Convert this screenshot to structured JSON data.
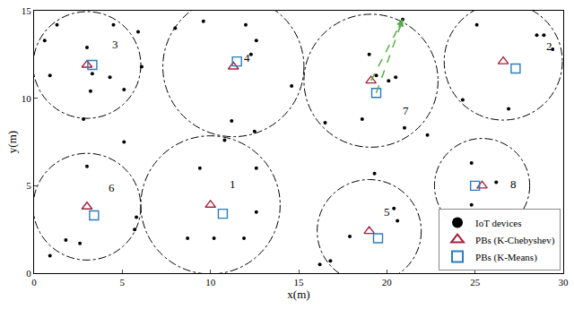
{
  "chart_data": {
    "type": "scatter",
    "xlabel": "x(m)",
    "ylabel": "y(m)",
    "xlim": [
      0,
      30
    ],
    "ylim": [
      0,
      15
    ],
    "xticks": [
      0,
      5,
      10,
      15,
      20,
      25,
      30
    ],
    "yticks": [
      0,
      5,
      10,
      15
    ],
    "grid": false,
    "legend": "lower right",
    "series": [
      {
        "name": "IoT devices",
        "color": "#000000",
        "marker": "circle",
        "x": [
          0.6,
          1.3,
          0.9,
          3.0,
          4.5,
          3.3,
          4.3,
          5.9,
          5.1,
          3.2,
          2.8,
          6.1,
          8.0,
          9.6,
          12.0,
          12.6,
          12.3,
          14.6,
          11.2,
          12.5,
          20.9,
          19.0,
          19.4,
          20.1,
          20.5,
          16.5,
          18.6,
          21.0,
          22.3,
          25.1,
          28.5,
          28.9,
          29.4,
          24.3,
          26.9,
          3.0,
          5.1,
          0.9,
          1.8,
          2.6,
          5.8,
          5.7,
          9.4,
          10.8,
          12.6,
          12.6,
          8.7,
          10.2,
          11.9,
          19.3,
          20.4,
          20.6,
          17.9,
          16.2,
          16.8,
          24.8,
          26.2,
          24.8
        ],
        "y": [
          13.3,
          14.2,
          11.3,
          12.9,
          14.2,
          11.4,
          11.2,
          13.8,
          10.5,
          10.4,
          8.8,
          11.8,
          14.0,
          14.4,
          14.2,
          13.3,
          12.5,
          10.7,
          8.7,
          8.1,
          14.5,
          12.5,
          11.3,
          11.0,
          11.2,
          8.6,
          8.8,
          8.3,
          7.9,
          14.2,
          13.6,
          13.6,
          12.8,
          9.9,
          9.4,
          6.1,
          7.5,
          1.0,
          1.9,
          1.7,
          3.2,
          2.5,
          6.0,
          7.6,
          6.0,
          3.5,
          2.0,
          2.0,
          2.0,
          5.7,
          3.7,
          3.0,
          2.1,
          0.5,
          0.7,
          6.3,
          5.2,
          3.9
        ]
      },
      {
        "name": "PBs (K-Chebyshev)",
        "color": "#a8213c",
        "marker": "triangle-up-open",
        "x": [
          10.0,
          26.6,
          3.0,
          11.3,
          19.0,
          3.0,
          19.1,
          25.4
        ],
        "y": [
          3.9,
          12.1,
          11.9,
          11.8,
          2.4,
          3.8,
          11.0,
          5.0
        ]
      },
      {
        "name": "PBs (K-Means)",
        "color": "#2b7bbf",
        "marker": "square-open",
        "x": [
          10.7,
          27.3,
          3.3,
          11.5,
          19.5,
          3.4,
          19.4,
          25.0
        ],
        "y": [
          3.4,
          11.7,
          11.9,
          12.1,
          2.0,
          3.3,
          10.3,
          5.0
        ]
      }
    ],
    "clusters": [
      {
        "label": "1",
        "label_x": 11.25,
        "label_y": 5.1,
        "coverage_radius": 3.95
      },
      {
        "label": "2",
        "label_x": 29.2,
        "label_y": 13.0,
        "coverage_radius": 3.35
      },
      {
        "label": "3",
        "label_x": 4.6,
        "label_y": 13.1,
        "coverage_radius": 3.05
      },
      {
        "label": "4",
        "label_x": 12.1,
        "label_y": 12.3,
        "coverage_radius": 4.0
      },
      {
        "label": "5",
        "label_x": 20.0,
        "label_y": 3.5,
        "coverage_radius": 2.95
      },
      {
        "label": "6",
        "label_x": 4.4,
        "label_y": 4.9,
        "coverage_radius": 3.05
      },
      {
        "label": "7",
        "label_x": 21.1,
        "label_y": 9.3,
        "coverage_radius": 3.8
      },
      {
        "label": "8",
        "label_x": 27.2,
        "label_y": 5.1,
        "coverage_radius": 2.7
      }
    ],
    "arrows": {
      "cluster": "7",
      "to": [
        20.9,
        14.5
      ],
      "color": "#5aae4a"
    }
  }
}
